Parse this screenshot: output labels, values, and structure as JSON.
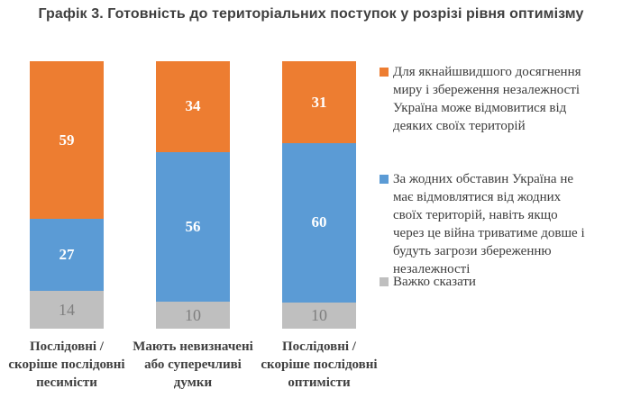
{
  "chart_data": {
    "type": "bar",
    "stacked": true,
    "orientation": "vertical",
    "title": "Графік 3. Готовність до територіальних поступок у розрізі рівня оптимізму",
    "categories": [
      "Послідовні / скоріше послідовні песимісти",
      "Мають невизначені або суперечливі думки",
      "Послідовні / скоріше послідовні оптимісти"
    ],
    "series": [
      {
        "name": "Для якнайшвидшого досягнення миру і збереження незалежності Україна може відмовитися від деяких своїх територій",
        "color": "#ED7D31",
        "values": [
          59,
          34,
          31
        ]
      },
      {
        "name": "За жодних обставин Україна не має відмовлятися від жодних своїх територій, навіть якщо через це війна триватиме довше і будуть загрози збереженню незалежності",
        "color": "#5B9BD5",
        "values": [
          27,
          56,
          60
        ]
      },
      {
        "name": "Важко сказати",
        "color": "#BFBFBF",
        "values": [
          14,
          10,
          10
        ]
      }
    ],
    "value_labels_shown": true,
    "legend_position": "right",
    "ylim": [
      0,
      100
    ],
    "grid": false,
    "axis_lines": false
  }
}
